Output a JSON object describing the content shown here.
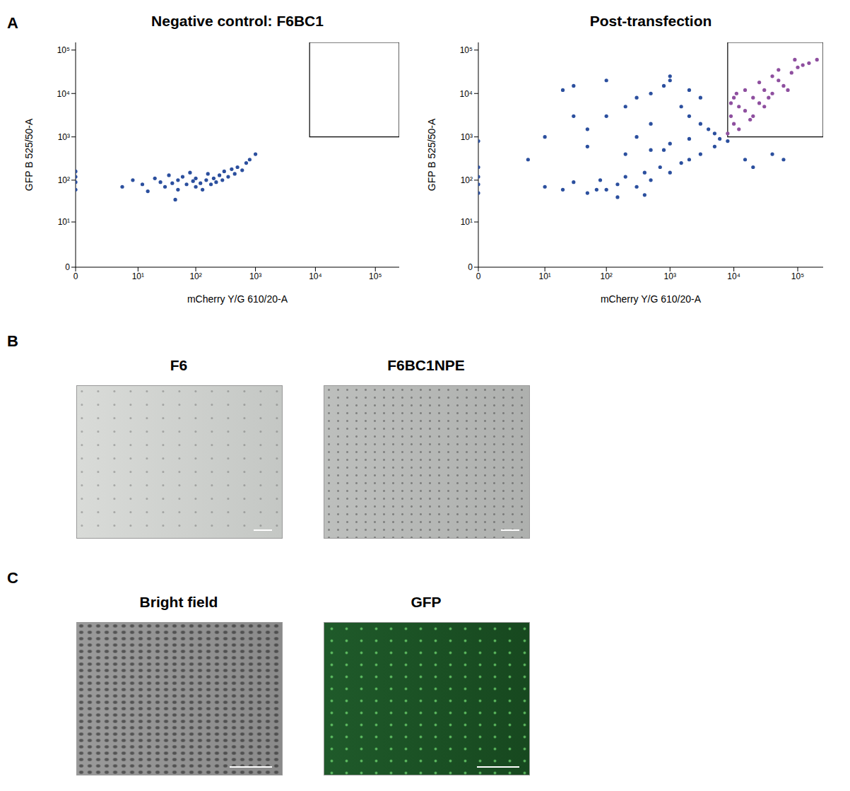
{
  "panel_labels": [
    "A",
    "B",
    "C"
  ],
  "chart_data": [
    {
      "type": "scatter",
      "title": "Negative control: F6BC1",
      "x_label": "mCherry Y/G 610/20-A",
      "y_label": "GFP B 525/50-A",
      "log": true,
      "xlim": [
        0,
        250000
      ],
      "ylim": [
        0,
        150000
      ],
      "xticks": [
        0,
        {
          "value": 10,
          "label": "10¹"
        },
        {
          "value": 100,
          "label": "10²"
        },
        {
          "value": 1000,
          "label": "10³"
        },
        {
          "value": 10000,
          "label": "10⁴"
        },
        {
          "value": 100000,
          "label": "10⁵"
        }
      ],
      "yticks": [
        0,
        {
          "value": 10,
          "label": "10¹"
        },
        {
          "value": 100,
          "label": "10²"
        },
        {
          "value": 1000,
          "label": "10³"
        },
        {
          "value": 10000,
          "label": "10⁴"
        },
        {
          "value": 100000,
          "label": "10⁵"
        }
      ],
      "gate": {
        "xlim": [
          8000,
          250000
        ],
        "ylim": [
          1000,
          150000
        ]
      },
      "series": [
        {
          "color": "#2b4f9e",
          "x": [
            0,
            0,
            0,
            0,
            5,
            8,
            12,
            15,
            20,
            25,
            30,
            35,
            40,
            50,
            50,
            60,
            70,
            80,
            90,
            100,
            100,
            120,
            130,
            150,
            160,
            180,
            200,
            220,
            250,
            280,
            300,
            350,
            400,
            450,
            500,
            600,
            700,
            800,
            1000,
            45
          ],
          "values": [
            60,
            90,
            120,
            160,
            70,
            100,
            80,
            55,
            110,
            90,
            70,
            130,
            85,
            60,
            100,
            120,
            80,
            150,
            95,
            70,
            110,
            85,
            60,
            100,
            140,
            80,
            110,
            90,
            130,
            100,
            160,
            120,
            180,
            140,
            200,
            170,
            250,
            300,
            400,
            35
          ]
        }
      ]
    },
    {
      "type": "scatter",
      "title": "Post-transfection",
      "x_label": "mCherry Y/G 610/20-A",
      "y_label": "GFP B 525/50-A",
      "log": true,
      "xlim": [
        0,
        250000
      ],
      "ylim": [
        0,
        150000
      ],
      "xticks": [
        0,
        {
          "value": 10,
          "label": "10¹"
        },
        {
          "value": 100,
          "label": "10²"
        },
        {
          "value": 1000,
          "label": "10³"
        },
        {
          "value": 10000,
          "label": "10⁴"
        },
        {
          "value": 100000,
          "label": "10⁵"
        }
      ],
      "yticks": [
        0,
        {
          "value": 10,
          "label": "10¹"
        },
        {
          "value": 100,
          "label": "10²"
        },
        {
          "value": 1000,
          "label": "10³"
        },
        {
          "value": 10000,
          "label": "10⁴"
        },
        {
          "value": 100000,
          "label": "10⁵"
        }
      ],
      "gate": {
        "xlim": [
          8000,
          250000
        ],
        "ylim": [
          1000,
          150000
        ]
      },
      "series": [
        {
          "color": "#2b4f9e",
          "x": [
            0,
            0,
            0,
            0,
            0,
            10,
            20,
            30,
            50,
            80,
            100,
            150,
            200,
            300,
            400,
            500,
            700,
            1000,
            1500,
            2000,
            3000,
            5000,
            8000,
            15000,
            50,
            100,
            200,
            300,
            500,
            800,
            1000,
            1500,
            2000,
            3000,
            4000,
            5000,
            6000,
            3000,
            2000,
            1000,
            500,
            300,
            100,
            30,
            20,
            50,
            200,
            500,
            1000,
            2000,
            20000,
            40000,
            60000,
            70,
            150,
            400,
            800,
            30,
            10,
            5
          ],
          "values": [
            50,
            80,
            120,
            200,
            800,
            70,
            60,
            90,
            50,
            100,
            60,
            80,
            120,
            70,
            150,
            100,
            200,
            150,
            250,
            300,
            400,
            600,
            800,
            300,
            1500,
            3000,
            5000,
            8000,
            10000,
            15000,
            20000,
            5000,
            3000,
            2000,
            1500,
            1200,
            900,
            8000,
            12000,
            25000,
            2000,
            1000,
            20000,
            3000,
            12000,
            600,
            400,
            500,
            700,
            900,
            200,
            400,
            300,
            60,
            40,
            45,
            500,
            15000,
            1000,
            300
          ]
        },
        {
          "color": "#8e4f9f",
          "x": [
            8000,
            9000,
            10000,
            12000,
            15000,
            20000,
            25000,
            30000,
            40000,
            50000,
            60000,
            80000,
            100000,
            150000,
            10000,
            12000,
            15000,
            20000,
            30000,
            40000,
            9000,
            11000,
            18000,
            25000,
            35000,
            50000,
            70000,
            90000,
            120000,
            200000
          ],
          "values": [
            1200,
            3000,
            2000,
            5000,
            4000,
            8000,
            6000,
            12000,
            10000,
            20000,
            15000,
            30000,
            40000,
            50000,
            8000,
            1500,
            12000,
            3000,
            5000,
            25000,
            6000,
            10000,
            2500,
            18000,
            8000,
            35000,
            12000,
            60000,
            45000,
            60000
          ]
        }
      ]
    }
  ],
  "panel_B": {
    "titles": [
      "F6",
      "F6BC1NPE"
    ]
  },
  "panel_C": {
    "titles": [
      "Bright field",
      "GFP"
    ]
  }
}
